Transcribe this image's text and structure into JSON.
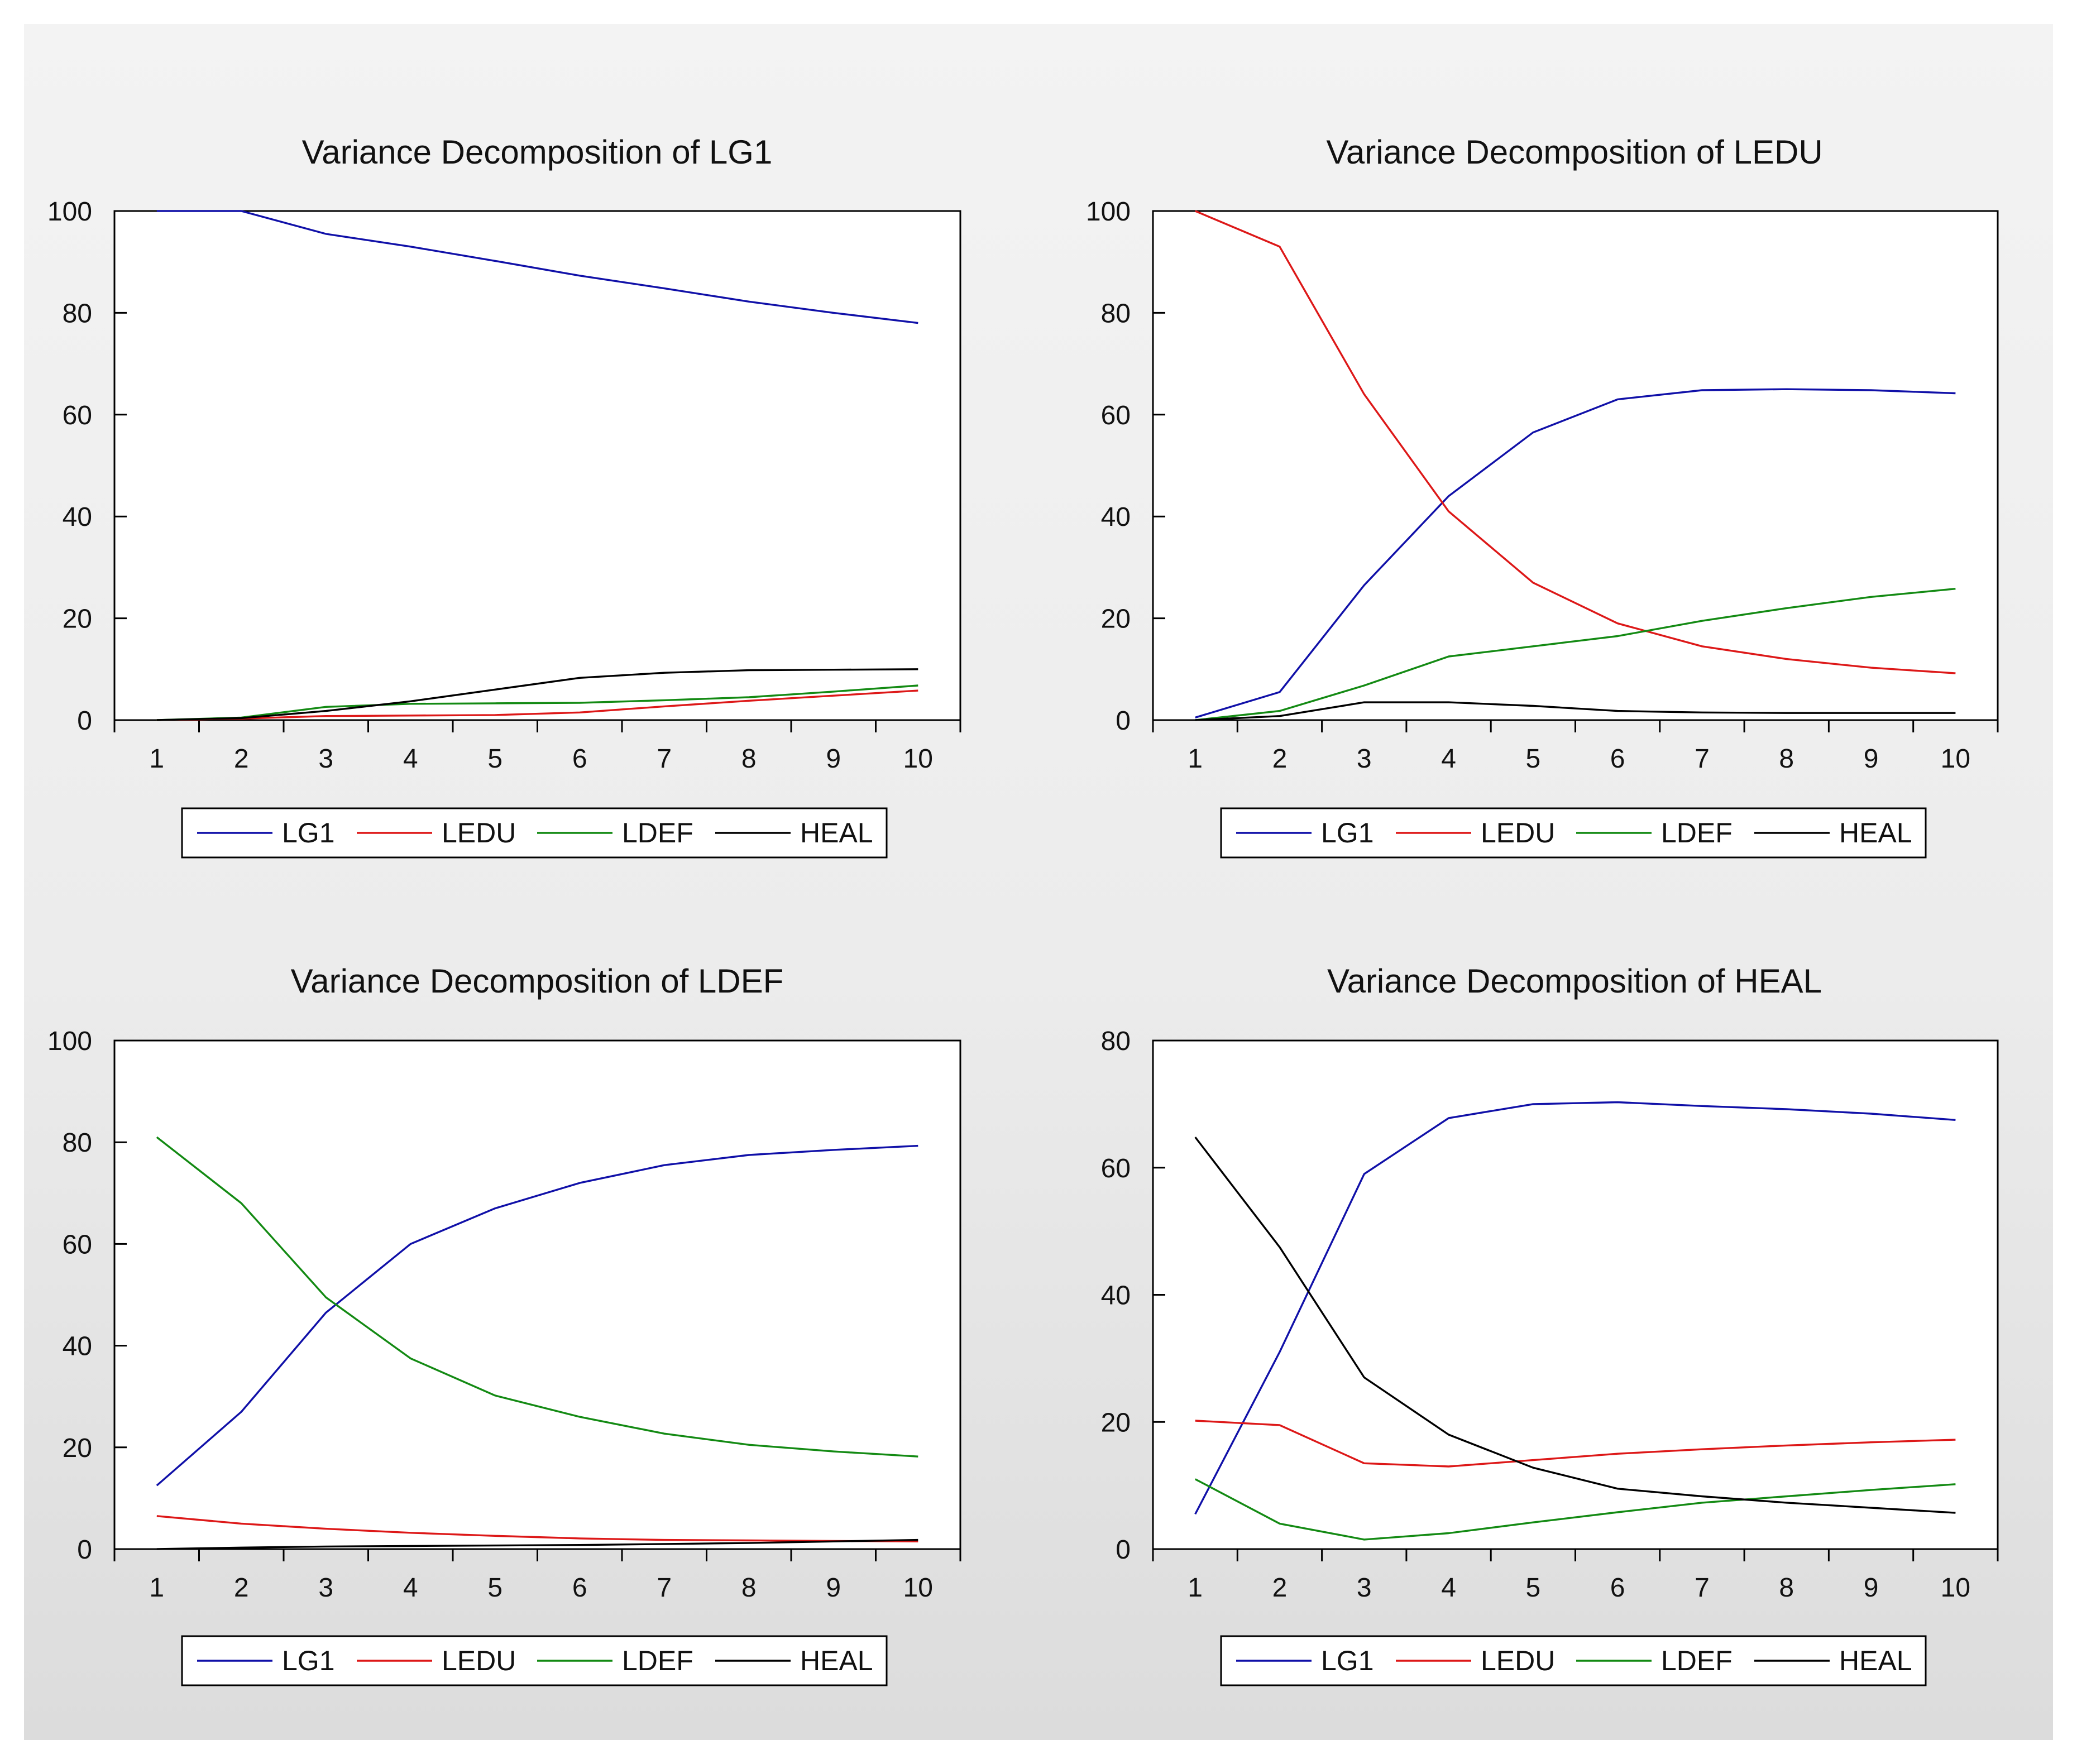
{
  "colors": {
    "LG1": "#1010a8",
    "LEDU": "#dd1818",
    "LDEF": "#138a13",
    "HEAL": "#000000"
  },
  "chart_data": [
    {
      "type": "line",
      "title": "Variance Decomposition of LG1",
      "xlabel": "",
      "ylabel": "",
      "x": [
        1,
        2,
        3,
        4,
        5,
        6,
        7,
        8,
        9,
        10
      ],
      "ylim": [
        0,
        100
      ],
      "yticks": [
        0,
        20,
        40,
        60,
        80,
        100
      ],
      "legend": [
        "LG1",
        "LEDU",
        "LDEF",
        "HEAL"
      ],
      "series": [
        {
          "name": "LG1",
          "values": [
            100,
            100,
            95.5,
            93,
            90.2,
            87.3,
            84.8,
            82.2,
            80,
            78
          ]
        },
        {
          "name": "LEDU",
          "values": [
            0,
            0.3,
            0.8,
            0.9,
            1.0,
            1.5,
            2.7,
            3.8,
            4.8,
            5.8
          ]
        },
        {
          "name": "LDEF",
          "values": [
            0,
            0.5,
            2.6,
            3.2,
            3.3,
            3.4,
            3.9,
            4.5,
            5.6,
            6.8
          ]
        },
        {
          "name": "HEAL",
          "values": [
            0,
            0.4,
            1.8,
            3.7,
            6.0,
            8.3,
            9.3,
            9.8,
            9.9,
            10.0
          ]
        }
      ]
    },
    {
      "type": "line",
      "title": "Variance Decomposition of LEDU",
      "xlabel": "",
      "ylabel": "",
      "x": [
        1,
        2,
        3,
        4,
        5,
        6,
        7,
        8,
        9,
        10
      ],
      "ylim": [
        0,
        100
      ],
      "yticks": [
        0,
        20,
        40,
        60,
        80,
        100
      ],
      "legend": [
        "LG1",
        "LEDU",
        "LDEF",
        "HEAL"
      ],
      "series": [
        {
          "name": "LG1",
          "values": [
            0.5,
            5.5,
            26.5,
            44,
            56.5,
            63,
            64.8,
            65,
            64.8,
            64.2
          ]
        },
        {
          "name": "LEDU",
          "values": [
            100,
            93,
            64,
            41,
            27,
            19,
            14.5,
            12,
            10.3,
            9.2
          ]
        },
        {
          "name": "LDEF",
          "values": [
            0,
            1.8,
            6.8,
            12.5,
            14.5,
            16.5,
            19.5,
            22,
            24.2,
            25.8
          ]
        },
        {
          "name": "HEAL",
          "values": [
            0,
            0.8,
            3.5,
            3.5,
            2.8,
            1.8,
            1.5,
            1.4,
            1.4,
            1.4
          ]
        }
      ]
    },
    {
      "type": "line",
      "title": "Variance Decomposition of LDEF",
      "xlabel": "",
      "ylabel": "",
      "x": [
        1,
        2,
        3,
        4,
        5,
        6,
        7,
        8,
        9,
        10
      ],
      "ylim": [
        0,
        100
      ],
      "yticks": [
        0,
        20,
        40,
        60,
        80,
        100
      ],
      "legend": [
        "LG1",
        "LEDU",
        "LDEF",
        "HEAL"
      ],
      "series": [
        {
          "name": "LG1",
          "values": [
            12.5,
            27,
            46.5,
            60,
            67,
            72,
            75.5,
            77.5,
            78.5,
            79.3
          ]
        },
        {
          "name": "LEDU",
          "values": [
            6.5,
            5,
            4,
            3.2,
            2.6,
            2.1,
            1.8,
            1.7,
            1.6,
            1.5
          ]
        },
        {
          "name": "LDEF",
          "values": [
            81,
            68,
            49.5,
            37.5,
            30.2,
            26,
            22.7,
            20.5,
            19.2,
            18.2
          ]
        },
        {
          "name": "HEAL",
          "values": [
            0,
            0.3,
            0.5,
            0.6,
            0.7,
            0.8,
            1.0,
            1.2,
            1.5,
            1.8
          ]
        }
      ]
    },
    {
      "type": "line",
      "title": "Variance Decomposition of HEAL",
      "xlabel": "",
      "ylabel": "",
      "x": [
        1,
        2,
        3,
        4,
        5,
        6,
        7,
        8,
        9,
        10
      ],
      "ylim": [
        0,
        80
      ],
      "yticks": [
        0,
        20,
        40,
        60,
        80
      ],
      "legend": [
        "LG1",
        "LEDU",
        "LDEF",
        "HEAL"
      ],
      "series": [
        {
          "name": "LG1",
          "values": [
            5.5,
            31,
            59,
            67.8,
            70,
            70.3,
            69.7,
            69.2,
            68.5,
            67.5
          ]
        },
        {
          "name": "LEDU",
          "values": [
            20.2,
            19.5,
            13.5,
            13,
            14,
            15,
            15.7,
            16.3,
            16.8,
            17.2
          ]
        },
        {
          "name": "LDEF",
          "values": [
            11,
            4,
            1.5,
            2.5,
            4.2,
            5.8,
            7.3,
            8.3,
            9.3,
            10.2
          ]
        },
        {
          "name": "HEAL",
          "values": [
            64.8,
            47.5,
            27,
            18,
            12.8,
            9.5,
            8.3,
            7.3,
            6.5,
            5.7
          ]
        }
      ]
    }
  ]
}
